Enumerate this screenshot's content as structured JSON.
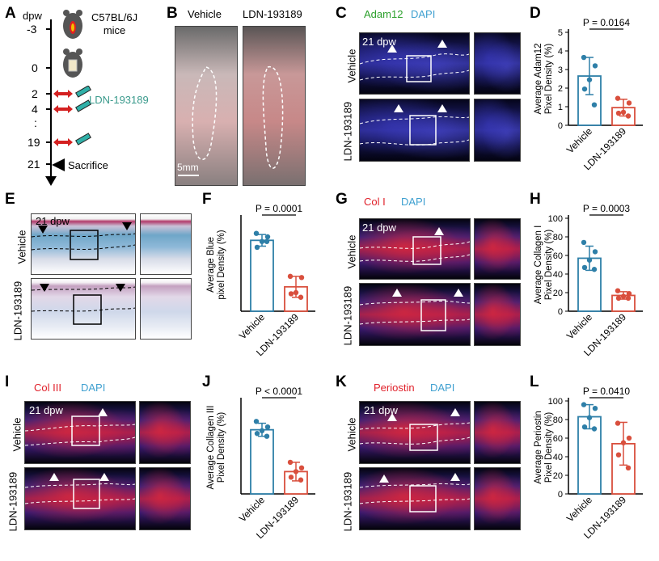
{
  "panels": {
    "A": "A",
    "B": "B",
    "C": "C",
    "D": "D",
    "E": "E",
    "F": "F",
    "G": "G",
    "H": "H",
    "I": "I",
    "J": "J",
    "K": "K",
    "L": "L"
  },
  "timeline": {
    "axis_label": "dpw",
    "ticks": [
      "-3",
      "0",
      "2",
      "4",
      ":",
      "19",
      "21"
    ],
    "mouse_label": "C57BL/6J\nmice",
    "drug_label": "LDN-193189",
    "sacrifice_label": "Sacrifice"
  },
  "panel_b": {
    "vehicle": "Vehicle",
    "ldn": "LDN-193189",
    "scale": "5mm"
  },
  "groups": {
    "vehicle": "Vehicle",
    "ldn": "LDN-193189"
  },
  "stains": {
    "c": {
      "marker": "Adam12",
      "dapi": "DAPI"
    },
    "g": {
      "marker": "Col I",
      "dapi": "DAPI"
    },
    "i": {
      "marker": "Col III",
      "dapi": "DAPI"
    },
    "k": {
      "marker": "Periostin",
      "dapi": "DAPI"
    }
  },
  "dpw_label": "21 dpw",
  "colors": {
    "vehicle": "#2e7fa8",
    "ldn": "#d94f3d",
    "adam12": "#2ca02c",
    "dapi": "#3fa0d0",
    "marker_red": "#e0202a"
  },
  "chart_data": [
    {
      "id": "D",
      "type": "bar",
      "categories": [
        "Vehicle",
        "LDN-193189"
      ],
      "values": [
        2.65,
        0.95
      ],
      "error": [
        1.0,
        0.45
      ],
      "points": [
        [
          3.65,
          3.2,
          2.45,
          1.95,
          1.1
        ],
        [
          1.45,
          1.2,
          0.7,
          0.65,
          0.5
        ]
      ],
      "ylabel": "Average Adam12\nPixel Density (%)",
      "ylim": [
        0,
        5
      ],
      "yticks": [
        0,
        1,
        2,
        3,
        4,
        5
      ],
      "pvalue": "P = 0.0164"
    },
    {
      "id": "F",
      "type": "bar",
      "categories": [
        "Vehicle",
        "LDN-193189"
      ],
      "values": [
        61,
        21
      ],
      "error": [
        5,
        9
      ],
      "points": [
        [
          67,
          64,
          60,
          55,
          60
        ],
        [
          30,
          29,
          16,
          15,
          12
        ]
      ],
      "ylabel": "Average Blue\npixel Density (%)",
      "ylim": [
        0,
        80
      ],
      "yticks": [],
      "pvalue": "P = 0.0001"
    },
    {
      "id": "H",
      "type": "bar",
      "categories": [
        "Vehicle",
        "LDN-193189"
      ],
      "values": [
        57,
        17
      ],
      "error": [
        13,
        4
      ],
      "points": [
        [
          74,
          64,
          55,
          47,
          45
        ],
        [
          22,
          19,
          16,
          14,
          14
        ]
      ],
      "ylabel": "Average Collagen I\nPixel Density (%)",
      "ylim": [
        0,
        100
      ],
      "yticks": [
        0,
        20,
        40,
        60,
        80,
        100
      ],
      "pvalue": "P = 0.0003"
    },
    {
      "id": "J",
      "type": "bar",
      "categories": [
        "Vehicle",
        "LDN-193189"
      ],
      "values": [
        69,
        24
      ],
      "error": [
        7,
        10
      ],
      "points": [
        [
          78,
          72,
          68,
          65,
          62
        ],
        [
          34,
          28,
          24,
          18,
          15
        ]
      ],
      "ylabel": "Average Collagen III\nPixel Density (%)",
      "ylim": [
        0,
        100
      ],
      "yticks": [],
      "pvalue": "P < 0.0001"
    },
    {
      "id": "L",
      "type": "bar",
      "categories": [
        "Vehicle",
        "LDN-193189"
      ],
      "values": [
        83,
        54
      ],
      "error": [
        13,
        23
      ],
      "points": [
        [
          96,
          92,
          82,
          72,
          70
        ],
        [
          76,
          60,
          55,
          42,
          28
        ]
      ],
      "ylabel": "Average Periostin\nPixel Density (%)",
      "ylim": [
        0,
        100
      ],
      "yticks": [
        0,
        20,
        40,
        60,
        80,
        100
      ],
      "pvalue": "P = 0.0410"
    }
  ]
}
